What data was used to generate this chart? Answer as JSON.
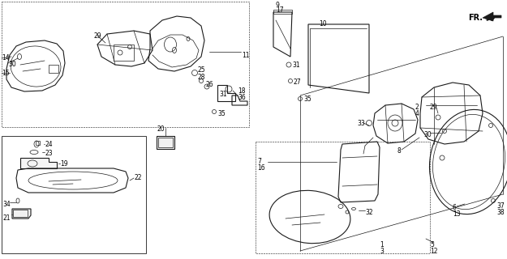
{
  "bg_color": "#ffffff",
  "line_color": "#1a1a1a",
  "fig_width": 6.25,
  "fig_height": 3.2,
  "dpi": 100,
  "gray": "#888888",
  "lgray": "#aaaaaa"
}
